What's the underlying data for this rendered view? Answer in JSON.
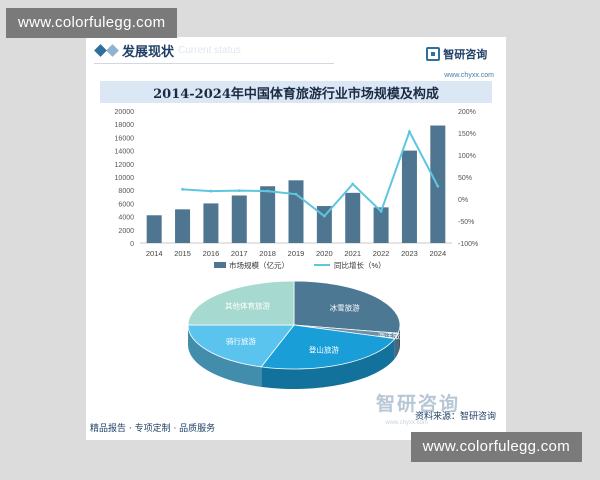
{
  "watermark": {
    "top_text": "www.colorfulegg.com",
    "bottom_text": "www.colorfulegg.com"
  },
  "header": {
    "section_title": "发展现状",
    "section_ghost": "Current status",
    "brand_name": "智研咨询",
    "brand_url": "www.chyxx.com"
  },
  "chart_title": "2014-2024年中国体育旅游行业市场规模及构成",
  "chart_data": [
    {
      "type": "bar",
      "title": "2014-2024年中国体育旅游行业市场规模及构成",
      "categories": [
        "2014",
        "2015",
        "2016",
        "2017",
        "2018",
        "2019",
        "2020",
        "2021",
        "2022",
        "2023",
        "2024"
      ],
      "series": [
        {
          "name": "市场规模（亿元）",
          "type": "bar",
          "axis": "left",
          "color": "#4f7691",
          "values": [
            4200,
            5100,
            6000,
            7200,
            8600,
            9500,
            5600,
            7600,
            5400,
            14000,
            17800
          ]
        },
        {
          "name": "同比增长（%）",
          "type": "line",
          "axis": "right",
          "color": "#5ec6e0",
          "values": [
            null,
            22,
            18,
            19,
            18,
            11,
            -39,
            34,
            -28,
            153,
            29
          ]
        }
      ],
      "left_axis": {
        "ticks": [
          "20000",
          "18000",
          "16000",
          "14000",
          "12000",
          "10000",
          "8000",
          "6000",
          "4000",
          "2000",
          "0"
        ],
        "ylim": [
          0,
          20000
        ]
      },
      "right_axis": {
        "ticks": [
          "200%",
          "150%",
          "100%",
          "50%",
          "0%",
          "-50%",
          "-100%"
        ],
        "ylim": [
          -100,
          200
        ]
      },
      "legend_placement": "bottom-center"
    },
    {
      "type": "pie",
      "style": "3d",
      "slices": [
        {
          "label": "冰雪旅游",
          "value": 28,
          "color": "#4d7893"
        },
        {
          "label": "海洋旅游",
          "value": 2,
          "color": "#6d8fa7"
        },
        {
          "label": "登山旅游",
          "value": 25,
          "color": "#1a9ed8"
        },
        {
          "label": "骑行旅游",
          "value": 20,
          "color": "#5bc4ee"
        },
        {
          "label": "其他体育旅游",
          "value": 25,
          "color": "#a6d9cf"
        }
      ]
    }
  ],
  "footer": {
    "left_text": "精品报告 · 专项定制 · 品质服务",
    "source_text": "资料来源：智研咨询",
    "brand_big": "智研咨询",
    "brand_big_url": "www.chyxx.com"
  }
}
